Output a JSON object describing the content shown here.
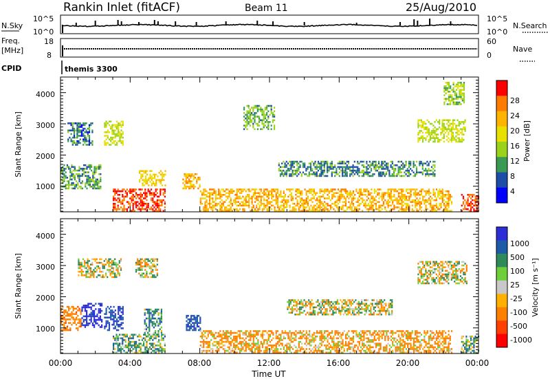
{
  "header": {
    "title": "Rankin Inlet (fitACF)",
    "beam": "Beam 11",
    "date": "25/Aug/2010"
  },
  "left_labels": {
    "nsky": "N.Sky",
    "freq": "Freq.",
    "mhz": "[MHz]",
    "cpid": "CPID"
  },
  "right_labels": {
    "nsearch": "N.Search",
    "nave": "Nave"
  },
  "cpid_text": "themis 3300",
  "noise_axis": {
    "left_ticks": [
      "10^5",
      "10^0"
    ],
    "right_ticks": [
      "10^5",
      "10^0"
    ]
  },
  "freq_axis": {
    "left_ticks": [
      "18",
      "8"
    ],
    "right_ticks": [
      "60",
      "0"
    ]
  },
  "colorbars": {
    "power": {
      "label": "Power [dB]",
      "ticks": [
        "28",
        "24",
        "20",
        "16",
        "12",
        "8",
        "4"
      ],
      "colors": [
        "#ff0000",
        "#ff7a00",
        "#ffb400",
        "#e8e000",
        "#9bd21c",
        "#3a9a55",
        "#1e4da8",
        "#0000ff"
      ]
    },
    "velocity": {
      "label": "Velocity [m s⁻¹]",
      "ticks": [
        "1000",
        "500",
        "100",
        "25",
        "-25",
        "-100",
        "-500",
        "-1000"
      ],
      "colors": [
        "#2d2dd8",
        "#1e5aa8",
        "#2e8a5a",
        "#6fcf3a",
        "#c8c8c8",
        "#ffb000",
        "#ff8000",
        "#ff4000",
        "#ff0000"
      ]
    }
  },
  "chart_data": [
    {
      "type": "heatmap",
      "title": "Power",
      "ylabel": "Slant Range [km]",
      "y_ticks": [
        "1000",
        "2000",
        "3000",
        "4000"
      ],
      "ylim": [
        180,
        4500
      ],
      "xlim_hours": [
        0,
        24
      ],
      "colorbar_label": "Power [dB]",
      "regions": [
        {
          "t0": 0.0,
          "t1": 2.3,
          "r0": 900,
          "r1": 1700,
          "power": 9
        },
        {
          "t0": 0.4,
          "t1": 1.8,
          "r0": 2300,
          "r1": 3000,
          "power": 7
        },
        {
          "t0": 2.5,
          "t1": 3.6,
          "r0": 2300,
          "r1": 3100,
          "power": 14
        },
        {
          "t0": 4.5,
          "t1": 6.0,
          "r0": 1000,
          "r1": 1500,
          "power": 18
        },
        {
          "t0": 7.0,
          "t1": 8.0,
          "r0": 900,
          "r1": 1400,
          "power": 20
        },
        {
          "t0": 3.0,
          "t1": 6.0,
          "r0": 180,
          "r1": 900,
          "power": 26
        },
        {
          "t0": 10.5,
          "t1": 12.3,
          "r0": 2800,
          "r1": 3600,
          "power": 10
        },
        {
          "t0": 8.0,
          "t1": 22.5,
          "r0": 180,
          "r1": 900,
          "power": 20
        },
        {
          "t0": 12.5,
          "t1": 21.5,
          "r0": 1300,
          "r1": 1800,
          "power": 8
        },
        {
          "t0": 20.5,
          "t1": 23.2,
          "r0": 2400,
          "r1": 3100,
          "power": 14
        },
        {
          "t0": 22.0,
          "t1": 23.2,
          "r0": 3600,
          "r1": 4300,
          "power": 12
        },
        {
          "t0": 23.0,
          "t1": 24.0,
          "r0": 180,
          "r1": 700,
          "power": 27
        }
      ]
    },
    {
      "type": "heatmap",
      "title": "Velocity",
      "ylabel": "Slant Range [km]",
      "y_ticks": [
        "1000",
        "2000",
        "3000",
        "4000"
      ],
      "ylim": [
        180,
        4500
      ],
      "xlim_hours": [
        0,
        24
      ],
      "xlabel": "Time UT",
      "x_ticks": [
        "00:00",
        "04:00",
        "08:00",
        "12:00",
        "16:00",
        "20:00",
        "00:00"
      ],
      "colorbar_label": "Velocity [m s⁻¹]",
      "regions": [
        {
          "t0": 0.0,
          "t1": 1.2,
          "r0": 900,
          "r1": 1700,
          "velocity": -300
        },
        {
          "t0": 1.2,
          "t1": 2.4,
          "r0": 1000,
          "r1": 1800,
          "velocity": 900
        },
        {
          "t0": 2.5,
          "t1": 3.6,
          "r0": 900,
          "r1": 1700,
          "velocity": 700
        },
        {
          "t0": 4.8,
          "t1": 5.8,
          "r0": 700,
          "r1": 1600,
          "velocity": 200
        },
        {
          "t0": 7.2,
          "t1": 8.0,
          "r0": 900,
          "r1": 1400,
          "velocity": 600
        },
        {
          "t0": 1.0,
          "t1": 3.5,
          "r0": 2600,
          "r1": 3200,
          "velocity": 0
        },
        {
          "t0": 4.3,
          "t1": 5.6,
          "r0": 2600,
          "r1": 3200,
          "velocity": 0
        },
        {
          "t0": 3.0,
          "t1": 6.0,
          "r0": 180,
          "r1": 800,
          "velocity": 150
        },
        {
          "t0": 8.0,
          "t1": 22.5,
          "r0": 180,
          "r1": 900,
          "velocity": -150
        },
        {
          "t0": 13.0,
          "t1": 19.0,
          "r0": 1400,
          "r1": 1900,
          "velocity": 0
        },
        {
          "t0": 20.5,
          "t1": 23.3,
          "r0": 2400,
          "r1": 3100,
          "velocity": 0
        },
        {
          "t0": 23.0,
          "t1": 24.0,
          "r0": 180,
          "r1": 700,
          "velocity": 150
        }
      ]
    }
  ]
}
